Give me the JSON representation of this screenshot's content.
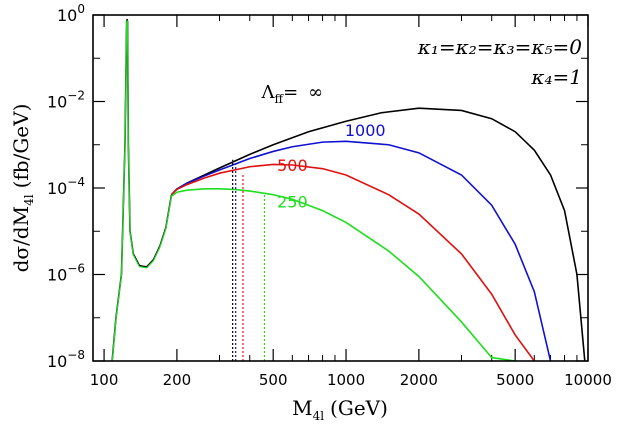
{
  "chart_data": {
    "type": "line",
    "xlabel_main": "M",
    "xlabel_sub": "4l",
    "xlabel_unit": "(GeV)",
    "ylabel_main": "dσ/dM",
    "ylabel_sub": "4l",
    "ylabel_unit": "(fb/GeV)",
    "xscale": "log",
    "yscale": "log",
    "xlim": [
      90,
      10000
    ],
    "ylim": [
      1e-08,
      1
    ],
    "x_ticks": [
      {
        "value": 100,
        "label": "100"
      },
      {
        "value": 200,
        "label": "200"
      },
      {
        "value": 500,
        "label": "500"
      },
      {
        "value": 1000,
        "label": "1000"
      },
      {
        "value": 2000,
        "label": "2000"
      },
      {
        "value": 5000,
        "label": "5000"
      },
      {
        "value": 10000,
        "label": "10000"
      }
    ],
    "y_ticks": [
      {
        "value": 1e-08,
        "base": "10",
        "exp": "−8"
      },
      {
        "value": 1e-06,
        "base": "10",
        "exp": "−6"
      },
      {
        "value": 0.0001,
        "base": "10",
        "exp": "−4"
      },
      {
        "value": 0.01,
        "base": "10",
        "exp": "−2"
      },
      {
        "value": 1,
        "base": "10",
        "exp": "0"
      }
    ],
    "annotation": {
      "line1": "κ₁=κ₂=κ₃=κ₅=0",
      "line2": "κ₄=1"
    },
    "common_low_mass": {
      "x": [
        108,
        112,
        118,
        122,
        124,
        124.5,
        125,
        126,
        128,
        132,
        140,
        150,
        160,
        170,
        180,
        186,
        190
      ],
      "y": [
        1e-08,
        1e-07,
        1e-06,
        0.001,
        0.7,
        0.8,
        0.7,
        0.001,
        1e-05,
        3e-06,
        1.6e-06,
        1.5e-06,
        2.2e-06,
        4.5e-06,
        1.2e-05,
        3.5e-05,
        7e-05
      ]
    },
    "series": [
      {
        "name": "∞",
        "label_prefix": "Λ",
        "label_sub": "ff",
        "label_eq": "=",
        "color": "#000000",
        "label_at": [
          600,
          0.012
        ],
        "x": [
          190,
          200,
          220,
          260,
          300,
          400,
          500,
          700,
          1000,
          1400,
          2000,
          3000,
          4000,
          5000,
          6000,
          7000,
          8000,
          9000,
          9700
        ],
        "y": [
          7e-05,
          9.5e-05,
          0.00013,
          0.0002,
          0.00029,
          0.0006,
          0.001,
          0.002,
          0.0035,
          0.0055,
          0.007,
          0.0062,
          0.004,
          0.002,
          0.00075,
          0.0002,
          3e-05,
          1e-06,
          1e-08
        ]
      },
      {
        "name": "1000",
        "color": "#1010d0",
        "label_at": [
          1200,
          0.0016
        ],
        "x": [
          190,
          200,
          220,
          260,
          300,
          400,
          500,
          600,
          800,
          1000,
          1500,
          2000,
          3000,
          4000,
          5000,
          6000,
          7000
        ],
        "y": [
          7e-05,
          9.5e-05,
          0.000128,
          0.00019,
          0.00026,
          0.00048,
          0.0007,
          0.0009,
          0.00115,
          0.0012,
          0.001,
          0.00065,
          0.0002,
          4e-05,
          5e-06,
          4e-07,
          1e-08
        ]
      },
      {
        "name": "500",
        "color": "#e01010",
        "label_at": [
          600,
          0.00025
        ],
        "x": [
          190,
          200,
          220,
          260,
          300,
          400,
          500,
          600,
          800,
          1000,
          1500,
          2000,
          3000,
          4000,
          5000,
          6000
        ],
        "y": [
          7e-05,
          9.3e-05,
          0.00012,
          0.00017,
          0.00022,
          0.00031,
          0.00035,
          0.00034,
          0.00028,
          0.0002,
          7e-05,
          2.5e-05,
          3e-06,
          3.5e-07,
          4e-08,
          1e-08
        ]
      },
      {
        "name": "250",
        "color": "#20dd20",
        "label_at": [
          600,
          3.5e-05
        ],
        "x": [
          190,
          200,
          220,
          260,
          300,
          350,
          400,
          500,
          600,
          800,
          1000,
          1500,
          2000,
          3000,
          4000,
          5000
        ],
        "y": [
          6.5e-05,
          8e-05,
          8.9e-05,
          9.6e-05,
          9.6e-05,
          9.2e-05,
          8.5e-05,
          7e-05,
          5.5e-05,
          3e-05,
          1.6e-05,
          3.5e-06,
          9e-07,
          8e-08,
          1.2e-08,
          1e-08
        ]
      }
    ],
    "vertical_markers": [
      {
        "x": 340,
        "top": 0.00045,
        "color": "#000000"
      },
      {
        "x": 350,
        "top": 0.00035,
        "color": "#1010d0"
      },
      {
        "x": 375,
        "top": 0.00022,
        "color": "#e01010"
      },
      {
        "x": 460,
        "top": 7e-05,
        "color": "#20dd20"
      }
    ]
  }
}
